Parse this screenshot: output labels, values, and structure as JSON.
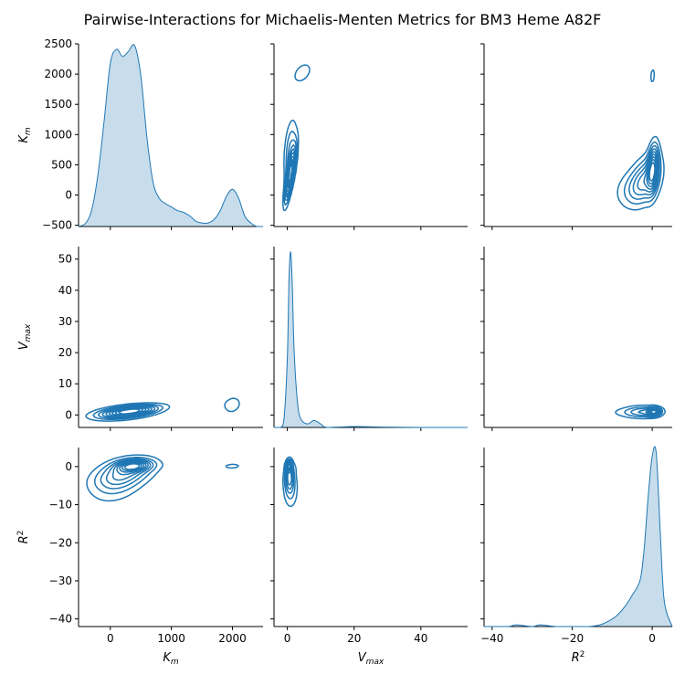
{
  "title": "Pairwise-Interactions for Michaelis-Menten Metrics for BM3 Heme A82F",
  "colors": {
    "line": "#1f77b4",
    "fill": "#1f77b4",
    "axis": "#000000"
  },
  "chart_data": {
    "type": "pairgrid-kde",
    "variables": [
      {
        "key": "Km",
        "label": "K",
        "sub": "m",
        "lim": [
          -520,
          2500
        ],
        "ticks": [
          0,
          1000,
          2000
        ],
        "ytick_labels": [
          -500,
          0,
          500,
          1000,
          1500,
          2000,
          2500
        ]
      },
      {
        "key": "Vmax",
        "label": "V",
        "sub": "max",
        "lim": [
          -4,
          54
        ],
        "ticks": [
          0,
          20,
          40
        ],
        "ytick_labels": [
          0,
          10,
          20,
          30,
          40,
          50
        ]
      },
      {
        "key": "R2",
        "label": "R",
        "sup": "2",
        "lim": [
          -42,
          5
        ],
        "ticks": [
          -40,
          -20,
          0
        ],
        "ytick_labels": [
          -40,
          -30,
          -20,
          -10,
          0
        ]
      }
    ],
    "diagonal": [
      {
        "variable": "Km",
        "x": [
          -520,
          -400,
          -300,
          -200,
          -100,
          0,
          100,
          200,
          300,
          400,
          500,
          600,
          700,
          800,
          900,
          1000,
          1100,
          1200,
          1300,
          1400,
          1500,
          1600,
          1700,
          1800,
          1900,
          2000,
          2100,
          2200,
          2300,
          2400,
          2500
        ],
        "density": [
          0.0,
          0.02,
          0.1,
          0.3,
          0.6,
          0.92,
          1.0,
          0.96,
          0.99,
          1.02,
          0.85,
          0.5,
          0.25,
          0.16,
          0.13,
          0.11,
          0.09,
          0.08,
          0.06,
          0.03,
          0.02,
          0.02,
          0.04,
          0.09,
          0.17,
          0.21,
          0.16,
          0.06,
          0.02,
          0.0,
          0.0
        ]
      },
      {
        "variable": "Vmax",
        "x": [
          -4,
          -2,
          -1,
          0,
          0.5,
          1,
          1.5,
          2,
          3,
          4,
          6,
          8,
          10,
          12,
          20,
          30,
          40,
          54
        ],
        "density": [
          0.0,
          0.0,
          0.05,
          0.4,
          0.85,
          1.0,
          0.8,
          0.45,
          0.15,
          0.05,
          0.02,
          0.04,
          0.02,
          0.0,
          0.005,
          0.002,
          0.0,
          0.0
        ]
      },
      {
        "variable": "R2",
        "x": [
          -42,
          -36,
          -34,
          -30,
          -28,
          -24,
          -20,
          -16,
          -13,
          -11,
          -9,
          -7,
          -5,
          -3,
          -2,
          -1,
          0,
          1,
          2,
          3,
          5
        ],
        "density": [
          0.0,
          0.0,
          0.01,
          0.0,
          0.01,
          0.0,
          0.0,
          0.0,
          0.01,
          0.03,
          0.06,
          0.11,
          0.18,
          0.27,
          0.45,
          0.75,
          0.98,
          1.0,
          0.55,
          0.15,
          0.0
        ]
      }
    ],
    "contour_levels": 9,
    "pairs": [
      {
        "x": "Vmax",
        "y": "Km",
        "components": [
          {
            "w": 1.0,
            "mx": 0.8,
            "my": 320,
            "sx": 1.0,
            "sy": 280,
            "rho": 0.8
          },
          {
            "w": 0.4,
            "mx": 1.0,
            "my": 700,
            "sx": 1.3,
            "sy": 350,
            "rho": 0.3
          },
          {
            "w": 0.18,
            "mx": 4.5,
            "my": 2020,
            "sx": 2.5,
            "sy": 150,
            "rho": 0.4
          }
        ]
      },
      {
        "x": "R2",
        "y": "Km",
        "components": [
          {
            "w": 1.0,
            "mx": 0.2,
            "my": 450,
            "sx": 0.9,
            "sy": 260,
            "rho": 0.3
          },
          {
            "w": 0.6,
            "mx": -1.5,
            "my": 300,
            "sx": 2.5,
            "sy": 250,
            "rho": 0.4
          },
          {
            "w": 0.35,
            "mx": -4.0,
            "my": 100,
            "sx": 3.5,
            "sy": 220,
            "rho": 0.2
          },
          {
            "w": 0.2,
            "mx": 0.1,
            "my": 1970,
            "sx": 0.6,
            "sy": 140,
            "rho": 0.2
          }
        ]
      },
      {
        "x": "Km",
        "y": "Vmax",
        "components": [
          {
            "w": 1.0,
            "mx": 350,
            "my": 1.3,
            "sx": 280,
            "sy": 1.2,
            "rho": 0.5
          },
          {
            "w": 0.5,
            "mx": 200,
            "my": 0.6,
            "sx": 350,
            "sy": 1.5,
            "rho": 0.4
          },
          {
            "w": 0.18,
            "mx": 2000,
            "my": 3.2,
            "sx": 150,
            "sy": 3.0,
            "rho": 0.2
          },
          {
            "w": 0.05,
            "mx": 1400,
            "my": 3.5,
            "sx": 350,
            "sy": 1.2,
            "rho": 0.0
          }
        ]
      },
      {
        "x": "R2",
        "y": "Vmax",
        "components": [
          {
            "w": 1.0,
            "mx": 0.5,
            "my": 1.0,
            "sx": 1.0,
            "sy": 0.8,
            "rho": 0.1
          },
          {
            "w": 0.45,
            "mx": -2.0,
            "my": 1.0,
            "sx": 3.0,
            "sy": 1.3,
            "rho": 0.0
          },
          {
            "w": 0.15,
            "mx": -6.0,
            "my": 0.8,
            "sx": 4.0,
            "sy": 1.2,
            "rho": 0.0
          },
          {
            "w": 0.08,
            "mx": 0.5,
            "my": 8.0,
            "sx": 1.0,
            "sy": 3.0,
            "rho": 0.0
          },
          {
            "w": 0.04,
            "mx": 0.0,
            "my": 23.0,
            "sx": 0.5,
            "sy": 0.5,
            "rho": 0.0
          },
          {
            "w": 0.03,
            "mx": -34.0,
            "my": 0.8,
            "sx": 0.7,
            "sy": 0.5,
            "rho": 0.0
          },
          {
            "w": 0.03,
            "mx": -27.5,
            "my": 0.8,
            "sx": 1.0,
            "sy": 0.6,
            "rho": 0.0
          }
        ]
      },
      {
        "x": "Km",
        "y": "R2",
        "components": [
          {
            "w": 1.0,
            "mx": 380,
            "my": 0.2,
            "sx": 180,
            "sy": 1.0,
            "rho": 0.2
          },
          {
            "w": 0.6,
            "mx": 250,
            "my": -1.5,
            "sx": 320,
            "sy": 2.5,
            "rho": 0.4
          },
          {
            "w": 0.35,
            "mx": 100,
            "my": -4.5,
            "sx": 300,
            "sy": 3.5,
            "rho": 0.3
          },
          {
            "w": 0.2,
            "mx": 2000,
            "my": 0.1,
            "sx": 140,
            "sy": 0.7,
            "rho": 0.1
          },
          {
            "w": 0.05,
            "mx": 1300,
            "my": 0.3,
            "sx": 350,
            "sy": 0.8,
            "rho": 0.0
          }
        ]
      },
      {
        "x": "Vmax",
        "y": "R2",
        "components": [
          {
            "w": 1.0,
            "mx": 0.5,
            "my": 0.2,
            "sx": 0.5,
            "sy": 0.9,
            "rho": 0.1
          },
          {
            "w": 0.6,
            "mx": 0.6,
            "my": -2.5,
            "sx": 0.9,
            "sy": 2.5,
            "rho": 0.0
          },
          {
            "w": 0.3,
            "mx": 1.0,
            "my": -6.0,
            "sx": 1.5,
            "sy": 3.5,
            "rho": 0.0
          },
          {
            "w": 0.08,
            "mx": 5.0,
            "my": 0.0,
            "sx": 2.5,
            "sy": 1.0,
            "rho": 0.0
          },
          {
            "w": 0.05,
            "mx": 22.5,
            "my": 0.4,
            "sx": 0.5,
            "sy": 0.5,
            "rho": 0.0
          },
          {
            "w": 0.04,
            "mx": 0.2,
            "my": -26.5,
            "sx": 0.5,
            "sy": 1.0,
            "rho": 0.0
          },
          {
            "w": 0.04,
            "mx": 0.2,
            "my": -34.0,
            "sx": 0.5,
            "sy": 0.7,
            "rho": 0.0
          }
        ]
      }
    ]
  }
}
